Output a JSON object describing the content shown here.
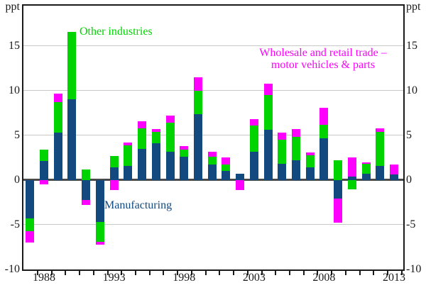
{
  "axis": {
    "unit_left": "ppt",
    "unit_right": "ppt",
    "y_ticks": [
      {
        "label": "15",
        "value": 15
      },
      {
        "label": "10",
        "value": 10
      },
      {
        "label": "5",
        "value": 5
      },
      {
        "label": "0",
        "value": 0
      },
      {
        "label": "-5",
        "value": -5
      },
      {
        "label": "-10",
        "value": -10
      }
    ],
    "x_tick_labels": [
      {
        "label": "1988",
        "year": 1988
      },
      {
        "label": "1993",
        "year": 1993
      },
      {
        "label": "1998",
        "year": 1998
      },
      {
        "label": "2003",
        "year": 2003
      },
      {
        "label": "2008",
        "year": 2008
      },
      {
        "label": "2013",
        "year": 2013
      }
    ]
  },
  "annotations": {
    "other_industries": {
      "text": "Other industries",
      "color": "#00d400"
    },
    "wholesale": {
      "line1": "Wholesale and retail trade –",
      "line2": "motor vehicles & parts",
      "color": "#ff00ff"
    },
    "manufacturing": {
      "text": "Manufacturing",
      "color": "#12497e"
    }
  },
  "colors": {
    "manufacturing": "#12497e",
    "other_industries": "#00d400",
    "wholesale": "#ff00ff",
    "gridline": "#c8c8c8",
    "zero_line": "#4a4a4a",
    "frame": "#1a1a1a"
  },
  "chart_data": {
    "type": "bar",
    "stacked": true,
    "unit": "ppt",
    "ylim": [
      -10,
      19.5
    ],
    "gridlines": [
      15,
      10,
      5,
      -5
    ],
    "x_years": [
      1987,
      1988,
      1989,
      1990,
      1991,
      1992,
      1993,
      1994,
      1995,
      1996,
      1997,
      1998,
      1999,
      2000,
      2001,
      2002,
      2003,
      2004,
      2005,
      2006,
      2007,
      2008,
      2009,
      2010,
      2011,
      2012,
      2013
    ],
    "series": [
      {
        "name": "Manufacturing",
        "color": "#12497e",
        "values": [
          -4.3,
          2.1,
          5.3,
          9.0,
          -2.2,
          -4.7,
          1.4,
          1.6,
          3.5,
          4.1,
          3.2,
          2.6,
          7.4,
          1.7,
          1.0,
          0.7,
          3.2,
          5.6,
          1.8,
          2.2,
          1.4,
          4.7,
          -2.1,
          0.4,
          0.7,
          1.6,
          0.6
        ]
      },
      {
        "name": "Other industries",
        "color": "#00d400",
        "values": [
          -1.4,
          1.3,
          3.4,
          7.6,
          1.2,
          -2.2,
          1.3,
          2.3,
          2.3,
          1.3,
          3.2,
          0.8,
          2.6,
          0.9,
          0.7,
          0,
          2.9,
          3.9,
          2.7,
          2.6,
          1.4,
          1.5,
          2.2,
          -1.0,
          1.1,
          3.8,
          0
        ]
      },
      {
        "name": "Wholesale and retail trade – motor vehicles & parts",
        "color": "#ff00ff",
        "values": [
          -1.3,
          -0.5,
          1.0,
          0,
          -0.6,
          -0.3,
          -1.1,
          0.3,
          0.8,
          0.3,
          0.8,
          0.4,
          1.5,
          0.6,
          0.8,
          -1.1,
          0.7,
          1.3,
          0.8,
          0.9,
          0.3,
          1.9,
          -2.7,
          2.1,
          0.2,
          0.4,
          1.1
        ]
      }
    ]
  }
}
